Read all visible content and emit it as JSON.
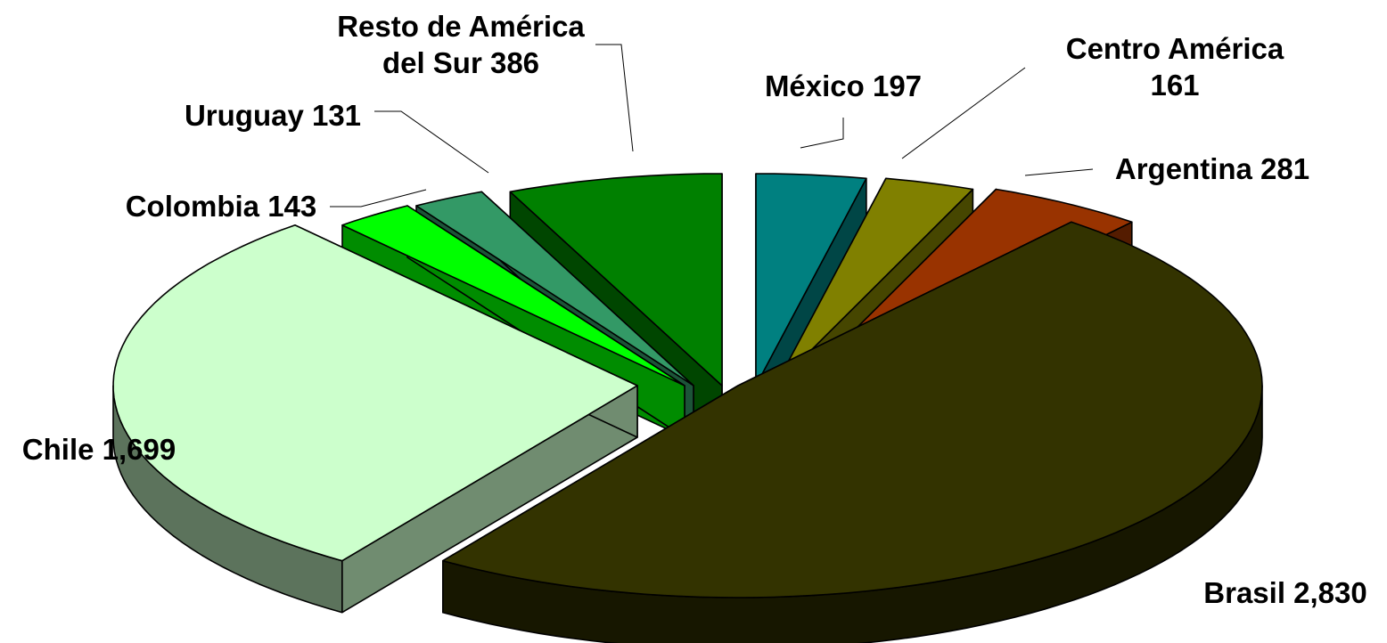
{
  "chart_data": {
    "type": "pie",
    "style": "3d-exploded",
    "title": "",
    "series": [
      {
        "values": [
          {
            "label_lines": [
              "México 197"
            ],
            "name": "México",
            "value": 197,
            "color": "#008080"
          },
          {
            "label_lines": [
              "Centro América",
              "161"
            ],
            "name": "Centro América",
            "value": 161,
            "color": "#808000"
          },
          {
            "label_lines": [
              "Argentina 281"
            ],
            "name": "Argentina",
            "value": 281,
            "color": "#993300"
          },
          {
            "label_lines": [
              "Brasil 2,830"
            ],
            "name": "Brasil",
            "value": 2830,
            "color": "#333300"
          },
          {
            "label_lines": [
              "Chile 1,699"
            ],
            "name": "Chile",
            "value": 1699,
            "color": "#CCFFCC"
          },
          {
            "label_lines": [
              "Colombia 143"
            ],
            "name": "Colombia",
            "value": 143,
            "color": "#00FF00"
          },
          {
            "label_lines": [
              "Uruguay 131"
            ],
            "name": "Uruguay",
            "value": 131,
            "color": "#339966"
          },
          {
            "label_lines": [
              "Resto de América",
              "del Sur 386"
            ],
            "name": "Resto de América del Sur",
            "value": 386,
            "color": "#008000"
          }
        ]
      }
    ],
    "legend": "none"
  }
}
